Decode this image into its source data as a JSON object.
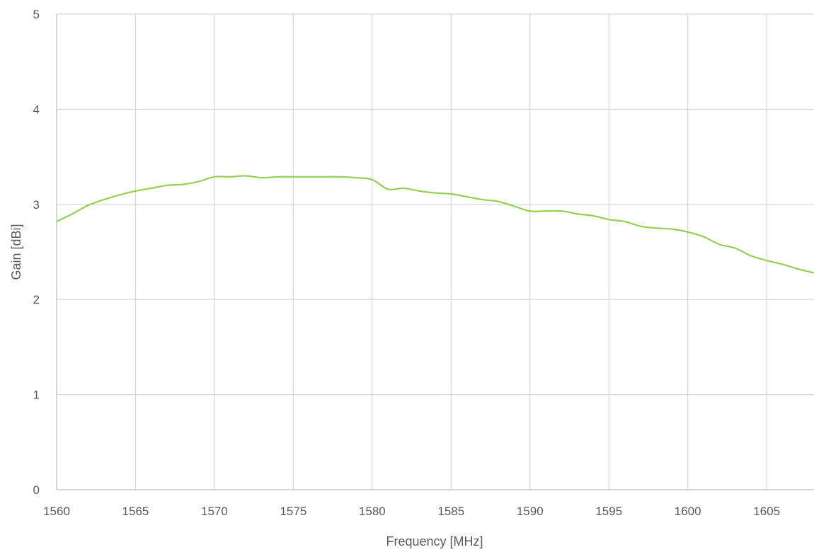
{
  "chart_data": {
    "type": "line",
    "title": "",
    "xlabel": "Frequency [MHz]",
    "ylabel": "Gain [dBi]",
    "xlim": [
      1560,
      1608
    ],
    "ylim": [
      0,
      5
    ],
    "x_ticks": [
      1560,
      1565,
      1570,
      1575,
      1580,
      1585,
      1590,
      1595,
      1600,
      1605
    ],
    "y_ticks": [
      0,
      1,
      2,
      3,
      4,
      5
    ],
    "grid": true,
    "legend": "none",
    "series": [
      {
        "color": "#92d050",
        "points": [
          [
            1560,
            2.82
          ],
          [
            1561,
            2.9
          ],
          [
            1562,
            2.99
          ],
          [
            1563,
            3.05
          ],
          [
            1564,
            3.1
          ],
          [
            1565,
            3.14
          ],
          [
            1566,
            3.17
          ],
          [
            1567,
            3.2
          ],
          [
            1568,
            3.21
          ],
          [
            1569,
            3.24
          ],
          [
            1570,
            3.29
          ],
          [
            1571,
            3.29
          ],
          [
            1572,
            3.3
          ],
          [
            1573,
            3.28
          ],
          [
            1574,
            3.29
          ],
          [
            1575,
            3.29
          ],
          [
            1576,
            3.29
          ],
          [
            1577,
            3.29
          ],
          [
            1578,
            3.29
          ],
          [
            1579,
            3.28
          ],
          [
            1580,
            3.26
          ],
          [
            1581,
            3.16
          ],
          [
            1582,
            3.17
          ],
          [
            1583,
            3.14
          ],
          [
            1584,
            3.12
          ],
          [
            1585,
            3.11
          ],
          [
            1586,
            3.08
          ],
          [
            1587,
            3.05
          ],
          [
            1588,
            3.03
          ],
          [
            1589,
            2.98
          ],
          [
            1590,
            2.93
          ],
          [
            1591,
            2.93
          ],
          [
            1592,
            2.93
          ],
          [
            1593,
            2.9
          ],
          [
            1594,
            2.88
          ],
          [
            1595,
            2.84
          ],
          [
            1596,
            2.82
          ],
          [
            1597,
            2.77
          ],
          [
            1598,
            2.75
          ],
          [
            1599,
            2.74
          ],
          [
            1600,
            2.71
          ],
          [
            1601,
            2.66
          ],
          [
            1602,
            2.58
          ],
          [
            1603,
            2.54
          ],
          [
            1604,
            2.46
          ],
          [
            1605,
            2.41
          ],
          [
            1606,
            2.37
          ],
          [
            1607,
            2.32
          ],
          [
            1608,
            2.28
          ]
        ]
      }
    ]
  }
}
